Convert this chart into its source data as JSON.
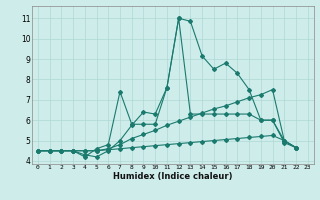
{
  "xlabel": "Humidex (Indice chaleur)",
  "bg_color": "#ceecea",
  "grid_color_major": "#aed8d4",
  "grid_color_minor": "#c8e8e5",
  "line_color": "#1a7a6e",
  "xlim": [
    -0.5,
    23.5
  ],
  "ylim": [
    3.85,
    11.6
  ],
  "yticks": [
    4,
    5,
    6,
    7,
    8,
    9,
    10,
    11
  ],
  "xticks": [
    0,
    1,
    2,
    3,
    4,
    5,
    6,
    7,
    8,
    9,
    10,
    11,
    12,
    13,
    14,
    15,
    16,
    17,
    18,
    19,
    20,
    21,
    22,
    23
  ],
  "series": [
    [
      4.5,
      4.5,
      4.5,
      4.5,
      4.3,
      4.2,
      4.5,
      5.0,
      5.75,
      6.4,
      6.3,
      7.6,
      11.0,
      10.85,
      9.15,
      8.5,
      8.8,
      8.3,
      7.5,
      6.0,
      6.0,
      4.9,
      4.65
    ],
    [
      4.5,
      4.5,
      4.5,
      4.5,
      4.2,
      4.6,
      4.8,
      7.4,
      5.8,
      5.8,
      5.8,
      7.6,
      11.0,
      6.3,
      6.3,
      6.3,
      6.3,
      6.3,
      6.3,
      6.0,
      6.0,
      5.0,
      4.65
    ],
    [
      4.5,
      4.5,
      4.5,
      4.5,
      4.5,
      4.5,
      4.6,
      4.8,
      5.1,
      5.3,
      5.5,
      5.75,
      5.95,
      6.15,
      6.35,
      6.55,
      6.7,
      6.9,
      7.1,
      7.25,
      7.5,
      5.0,
      4.65
    ],
    [
      4.5,
      4.5,
      4.5,
      4.5,
      4.5,
      4.5,
      4.55,
      4.6,
      4.65,
      4.7,
      4.75,
      4.8,
      4.85,
      4.9,
      4.95,
      5.0,
      5.05,
      5.1,
      5.15,
      5.2,
      5.25,
      5.0,
      4.65
    ]
  ]
}
